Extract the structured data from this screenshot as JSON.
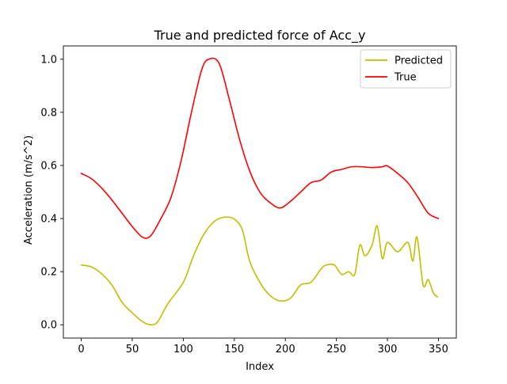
{
  "chart_data": {
    "type": "line",
    "title": "True and predicted force of Acc_y",
    "xlabel": "Index",
    "ylabel": "Acceleration (m/s^2)",
    "xlim": [
      -17.5,
      367.5
    ],
    "ylim": [
      -0.05,
      1.05
    ],
    "xticks": [
      0,
      50,
      100,
      150,
      200,
      250,
      300,
      350
    ],
    "yticks": [
      0.0,
      0.2,
      0.4,
      0.6,
      0.8,
      1.0
    ],
    "xtick_labels": [
      "0",
      "50",
      "100",
      "150",
      "200",
      "250",
      "300",
      "350"
    ],
    "ytick_labels": [
      "0.0",
      "0.2",
      "0.4",
      "0.6",
      "0.8",
      "1.0"
    ],
    "grid": false,
    "legend_position": "top-right",
    "series": [
      {
        "name": "Predicted",
        "color": "#bfbf00",
        "points": [
          [
            0,
            0.225
          ],
          [
            10,
            0.218
          ],
          [
            20,
            0.192
          ],
          [
            30,
            0.15
          ],
          [
            40,
            0.085
          ],
          [
            50,
            0.045
          ],
          [
            60,
            0.012
          ],
          [
            68,
            0.0
          ],
          [
            75,
            0.012
          ],
          [
            85,
            0.08
          ],
          [
            100,
            0.16
          ],
          [
            110,
            0.26
          ],
          [
            120,
            0.34
          ],
          [
            130,
            0.388
          ],
          [
            140,
            0.405
          ],
          [
            150,
            0.398
          ],
          [
            158,
            0.355
          ],
          [
            165,
            0.24
          ],
          [
            175,
            0.16
          ],
          [
            185,
            0.11
          ],
          [
            195,
            0.09
          ],
          [
            205,
            0.1
          ],
          [
            215,
            0.15
          ],
          [
            225,
            0.16
          ],
          [
            235,
            0.21
          ],
          [
            240,
            0.225
          ],
          [
            248,
            0.225
          ],
          [
            255,
            0.19
          ],
          [
            262,
            0.2
          ],
          [
            268,
            0.19
          ],
          [
            273,
            0.3
          ],
          [
            278,
            0.26
          ],
          [
            285,
            0.3
          ],
          [
            290,
            0.372
          ],
          [
            295,
            0.25
          ],
          [
            300,
            0.31
          ],
          [
            310,
            0.275
          ],
          [
            320,
            0.31
          ],
          [
            325,
            0.24
          ],
          [
            329,
            0.33
          ],
          [
            335,
            0.15
          ],
          [
            340,
            0.17
          ],
          [
            345,
            0.12
          ],
          [
            349,
            0.105
          ]
        ]
      },
      {
        "name": "True",
        "color": "#ff0000",
        "points": [
          [
            0,
            0.57
          ],
          [
            10,
            0.55
          ],
          [
            20,
            0.515
          ],
          [
            30,
            0.47
          ],
          [
            40,
            0.42
          ],
          [
            50,
            0.37
          ],
          [
            60,
            0.33
          ],
          [
            68,
            0.335
          ],
          [
            78,
            0.4
          ],
          [
            88,
            0.48
          ],
          [
            98,
            0.62
          ],
          [
            108,
            0.8
          ],
          [
            118,
            0.96
          ],
          [
            125,
            1.0
          ],
          [
            135,
            0.985
          ],
          [
            145,
            0.85
          ],
          [
            155,
            0.7
          ],
          [
            165,
            0.58
          ],
          [
            175,
            0.5
          ],
          [
            185,
            0.46
          ],
          [
            195,
            0.44
          ],
          [
            205,
            0.465
          ],
          [
            215,
            0.5
          ],
          [
            225,
            0.535
          ],
          [
            235,
            0.545
          ],
          [
            245,
            0.575
          ],
          [
            255,
            0.585
          ],
          [
            265,
            0.595
          ],
          [
            275,
            0.595
          ],
          [
            285,
            0.592
          ],
          [
            295,
            0.595
          ],
          [
            300,
            0.598
          ],
          [
            310,
            0.57
          ],
          [
            320,
            0.535
          ],
          [
            330,
            0.48
          ],
          [
            340,
            0.42
          ],
          [
            350,
            0.4
          ]
        ]
      }
    ]
  }
}
